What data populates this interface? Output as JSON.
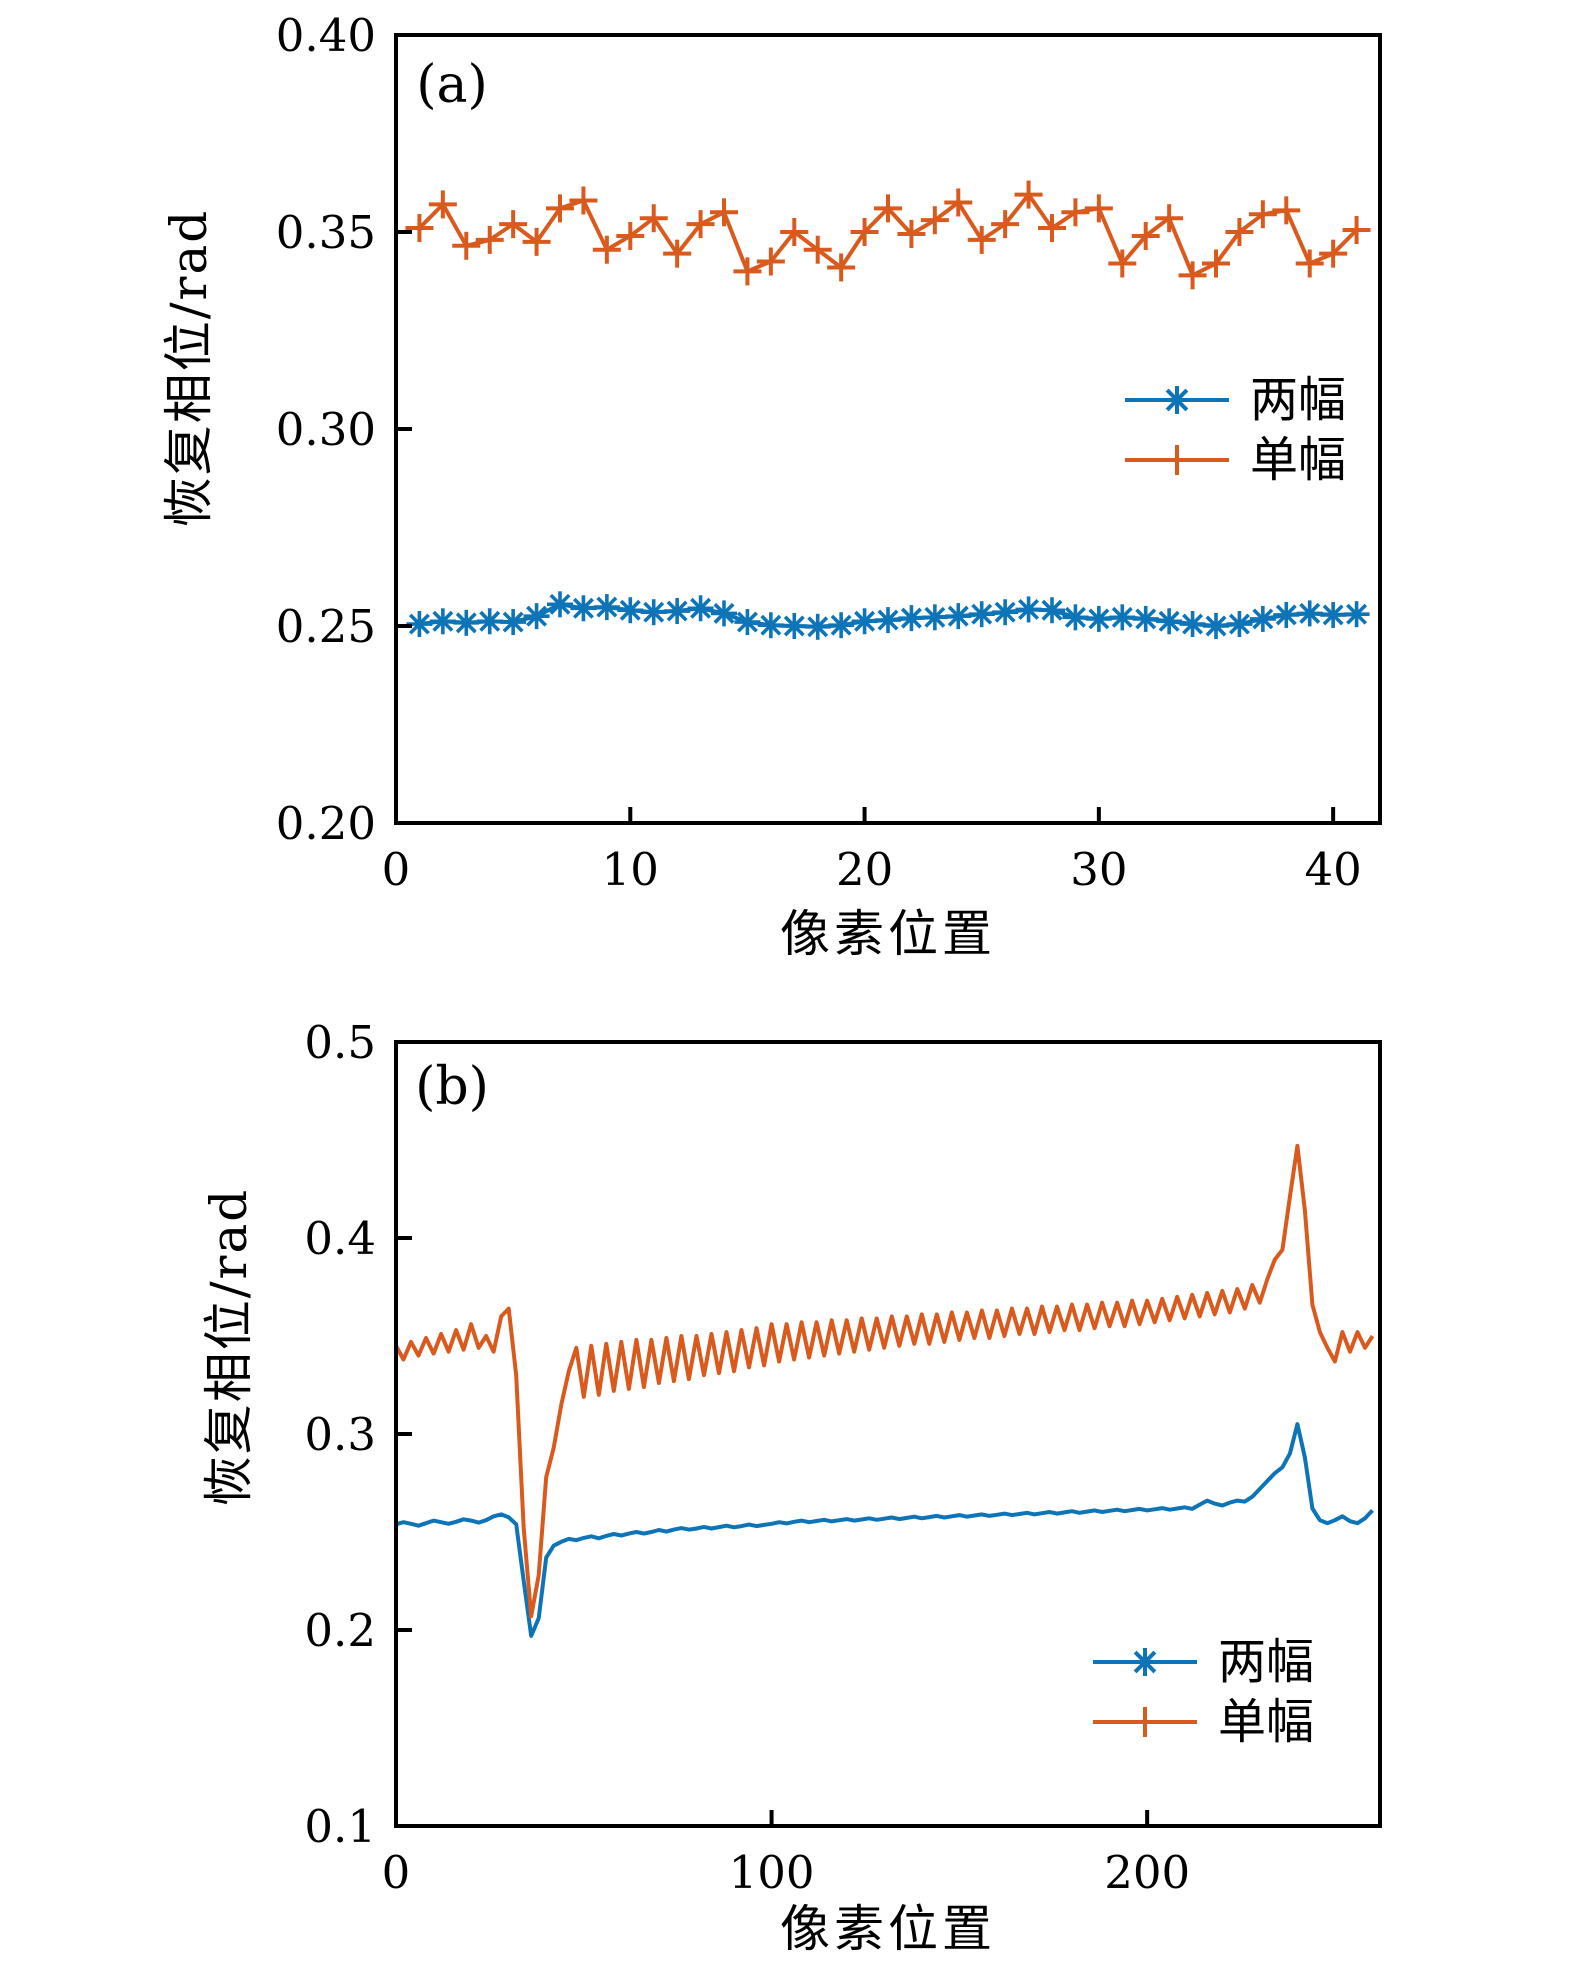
{
  "figure": {
    "background": "#ffffff",
    "axis_color": "#000000",
    "text_color": "#000000"
  },
  "chart_data": [
    {
      "type": "line",
      "tag": "(a)",
      "xlabel": "像素位置",
      "ylabel": "恢复相位/rad",
      "xlim": [
        0,
        42
      ],
      "ylim": [
        0.2,
        0.4
      ],
      "xticks": [
        0,
        10,
        20,
        30,
        40
      ],
      "yticks": [
        0.4,
        0.35,
        0.3,
        0.25,
        0.2
      ],
      "ytick_decimals": 2,
      "grid": false,
      "legend_position": "right-center",
      "series": [
        {
          "name": "两幅",
          "color": "#0e74b8",
          "marker": "asterisk",
          "legend_marker": "asterisk",
          "x0": 1,
          "dx": 1,
          "values": [
            0.2505,
            0.2512,
            0.2508,
            0.2512,
            0.251,
            0.2525,
            0.2555,
            0.2545,
            0.2548,
            0.254,
            0.2535,
            0.2538,
            0.2545,
            0.2532,
            0.251,
            0.2502,
            0.25,
            0.2498,
            0.2502,
            0.2512,
            0.2515,
            0.252,
            0.2522,
            0.2525,
            0.253,
            0.2535,
            0.2542,
            0.254,
            0.2522,
            0.2518,
            0.2522,
            0.2518,
            0.2512,
            0.2505,
            0.25,
            0.2505,
            0.2518,
            0.2528,
            0.2532,
            0.2528,
            0.253
          ]
        },
        {
          "name": "单幅",
          "color": "#da5a1e",
          "marker": "plus",
          "legend_marker": "plus",
          "x0": 1,
          "dx": 1,
          "values": [
            0.351,
            0.357,
            0.3465,
            0.348,
            0.352,
            0.3475,
            0.356,
            0.358,
            0.3455,
            0.349,
            0.3535,
            0.3445,
            0.352,
            0.355,
            0.34,
            0.3425,
            0.35,
            0.3455,
            0.341,
            0.35,
            0.356,
            0.3495,
            0.353,
            0.3575,
            0.348,
            0.352,
            0.3595,
            0.351,
            0.355,
            0.356,
            0.342,
            0.349,
            0.3535,
            0.339,
            0.342,
            0.35,
            0.3545,
            0.3555,
            0.342,
            0.3445,
            0.3505
          ]
        }
      ]
    },
    {
      "type": "line",
      "tag": "(b)",
      "xlabel": "像素位置",
      "ylabel": "恢复相位/rad",
      "xlim": [
        0,
        262
      ],
      "ylim": [
        0.1,
        0.5
      ],
      "xticks": [
        0,
        100,
        200
      ],
      "yticks": [
        0.5,
        0.4,
        0.3,
        0.2,
        0.1
      ],
      "ytick_decimals": 1,
      "grid": false,
      "legend_position": "right-lower",
      "series": [
        {
          "name": "两幅",
          "color": "#0e74b8",
          "marker": "none",
          "legend_marker": "asterisk",
          "x0": 0,
          "dx": 2,
          "values": [
            0.254,
            0.255,
            0.2542,
            0.2532,
            0.2545,
            0.2558,
            0.255,
            0.2542,
            0.2552,
            0.2565,
            0.2558,
            0.2548,
            0.256,
            0.258,
            0.259,
            0.2575,
            0.254,
            0.225,
            0.197,
            0.206,
            0.237,
            0.243,
            0.245,
            0.2465,
            0.2458,
            0.247,
            0.2478,
            0.2468,
            0.248,
            0.249,
            0.2482,
            0.2492,
            0.25,
            0.2492,
            0.25,
            0.251,
            0.2502,
            0.2512,
            0.252,
            0.2512,
            0.2518,
            0.2526,
            0.2518,
            0.2525,
            0.2532,
            0.2524,
            0.253,
            0.2538,
            0.253,
            0.2536,
            0.2542,
            0.255,
            0.2544,
            0.2552,
            0.2558,
            0.255,
            0.2556,
            0.2562,
            0.2554,
            0.256,
            0.2566,
            0.2558,
            0.2564,
            0.257,
            0.2562,
            0.2568,
            0.2574,
            0.2566,
            0.2572,
            0.2578,
            0.257,
            0.2576,
            0.2582,
            0.2574,
            0.258,
            0.2586,
            0.2578,
            0.2584,
            0.259,
            0.2582,
            0.2588,
            0.2594,
            0.2586,
            0.2592,
            0.2598,
            0.259,
            0.2596,
            0.2602,
            0.2594,
            0.26,
            0.2606,
            0.2598,
            0.2604,
            0.261,
            0.2602,
            0.2608,
            0.2614,
            0.2606,
            0.2612,
            0.2618,
            0.261,
            0.2616,
            0.2622,
            0.2614,
            0.262,
            0.2626,
            0.2618,
            0.264,
            0.266,
            0.2645,
            0.2635,
            0.265,
            0.266,
            0.2655,
            0.268,
            0.272,
            0.276,
            0.28,
            0.283,
            0.29,
            0.305,
            0.288,
            0.262,
            0.256,
            0.2545,
            0.256,
            0.258,
            0.2555,
            0.2545,
            0.257,
            0.261
          ]
        },
        {
          "name": "单幅",
          "color": "#da5a1e",
          "marker": "none",
          "legend_marker": "plus",
          "x0": 0,
          "dx": 2,
          "values": [
            0.345,
            0.338,
            0.347,
            0.34,
            0.349,
            0.341,
            0.351,
            0.342,
            0.353,
            0.343,
            0.356,
            0.344,
            0.35,
            0.342,
            0.36,
            0.364,
            0.33,
            0.252,
            0.207,
            0.228,
            0.278,
            0.293,
            0.315,
            0.332,
            0.344,
            0.319,
            0.345,
            0.32,
            0.346,
            0.322,
            0.347,
            0.323,
            0.348,
            0.324,
            0.348,
            0.326,
            0.349,
            0.327,
            0.35,
            0.328,
            0.35,
            0.33,
            0.351,
            0.331,
            0.352,
            0.332,
            0.353,
            0.334,
            0.354,
            0.335,
            0.356,
            0.337,
            0.356,
            0.338,
            0.357,
            0.339,
            0.357,
            0.34,
            0.358,
            0.341,
            0.358,
            0.342,
            0.359,
            0.343,
            0.359,
            0.344,
            0.36,
            0.345,
            0.36,
            0.346,
            0.361,
            0.346,
            0.361,
            0.347,
            0.362,
            0.348,
            0.362,
            0.349,
            0.363,
            0.349,
            0.363,
            0.35,
            0.364,
            0.351,
            0.364,
            0.351,
            0.365,
            0.352,
            0.365,
            0.353,
            0.366,
            0.353,
            0.366,
            0.354,
            0.367,
            0.355,
            0.367,
            0.355,
            0.368,
            0.356,
            0.368,
            0.357,
            0.369,
            0.358,
            0.37,
            0.359,
            0.371,
            0.36,
            0.372,
            0.361,
            0.373,
            0.362,
            0.374,
            0.364,
            0.376,
            0.367,
            0.379,
            0.389,
            0.394,
            0.421,
            0.447,
            0.414,
            0.366,
            0.352,
            0.344,
            0.337,
            0.352,
            0.342,
            0.352,
            0.344,
            0.35
          ]
        }
      ]
    }
  ]
}
